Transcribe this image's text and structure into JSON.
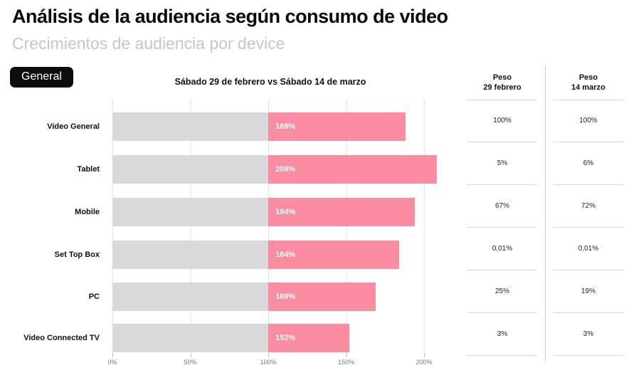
{
  "page": {
    "title": "Análisis de la audiencia según consumo de video",
    "subtitle": "Crecimientos de audiencia por device"
  },
  "filter": {
    "label": "General"
  },
  "chart_data": {
    "type": "bar",
    "orientation": "horizontal",
    "title": "Sábado 29 de febrero vs Sábado 14 de marzo",
    "categories": [
      "Video General",
      "Tablet",
      "Mobile",
      "Set Top Box",
      "PC",
      "Video Connected TV"
    ],
    "values": [
      188,
      208,
      194,
      184,
      169,
      152
    ],
    "value_labels": [
      "188%",
      "208%",
      "194%",
      "184%",
      "169%",
      "152%"
    ],
    "baseline": 100,
    "xlim": [
      0,
      220
    ],
    "x_tick_values": [
      0,
      50,
      100,
      150,
      200
    ],
    "x_tick_labels": [
      "0%",
      "50%",
      "100%",
      "150%",
      "200%"
    ],
    "grid": true,
    "legend": "none",
    "colors": {
      "base_segment": "#d9d9d9",
      "growth_segment": "#f98ca0",
      "value_text": "#ffffff",
      "gridline": "#e3e3e3",
      "badge_bg": "#0d0d0d",
      "subtitle_text": "#c6c6c6"
    }
  },
  "peso_table": {
    "columns": [
      {
        "header_line1": "Peso",
        "header_line2": "29 febrero",
        "values": [
          "100%",
          "5%",
          "67%",
          "0,01%",
          "25%",
          "3%"
        ]
      },
      {
        "header_line1": "Peso",
        "header_line2": "14 marzo",
        "values": [
          "100%",
          "6%",
          "72%",
          "0,01%",
          "19%",
          "3%"
        ]
      }
    ]
  }
}
